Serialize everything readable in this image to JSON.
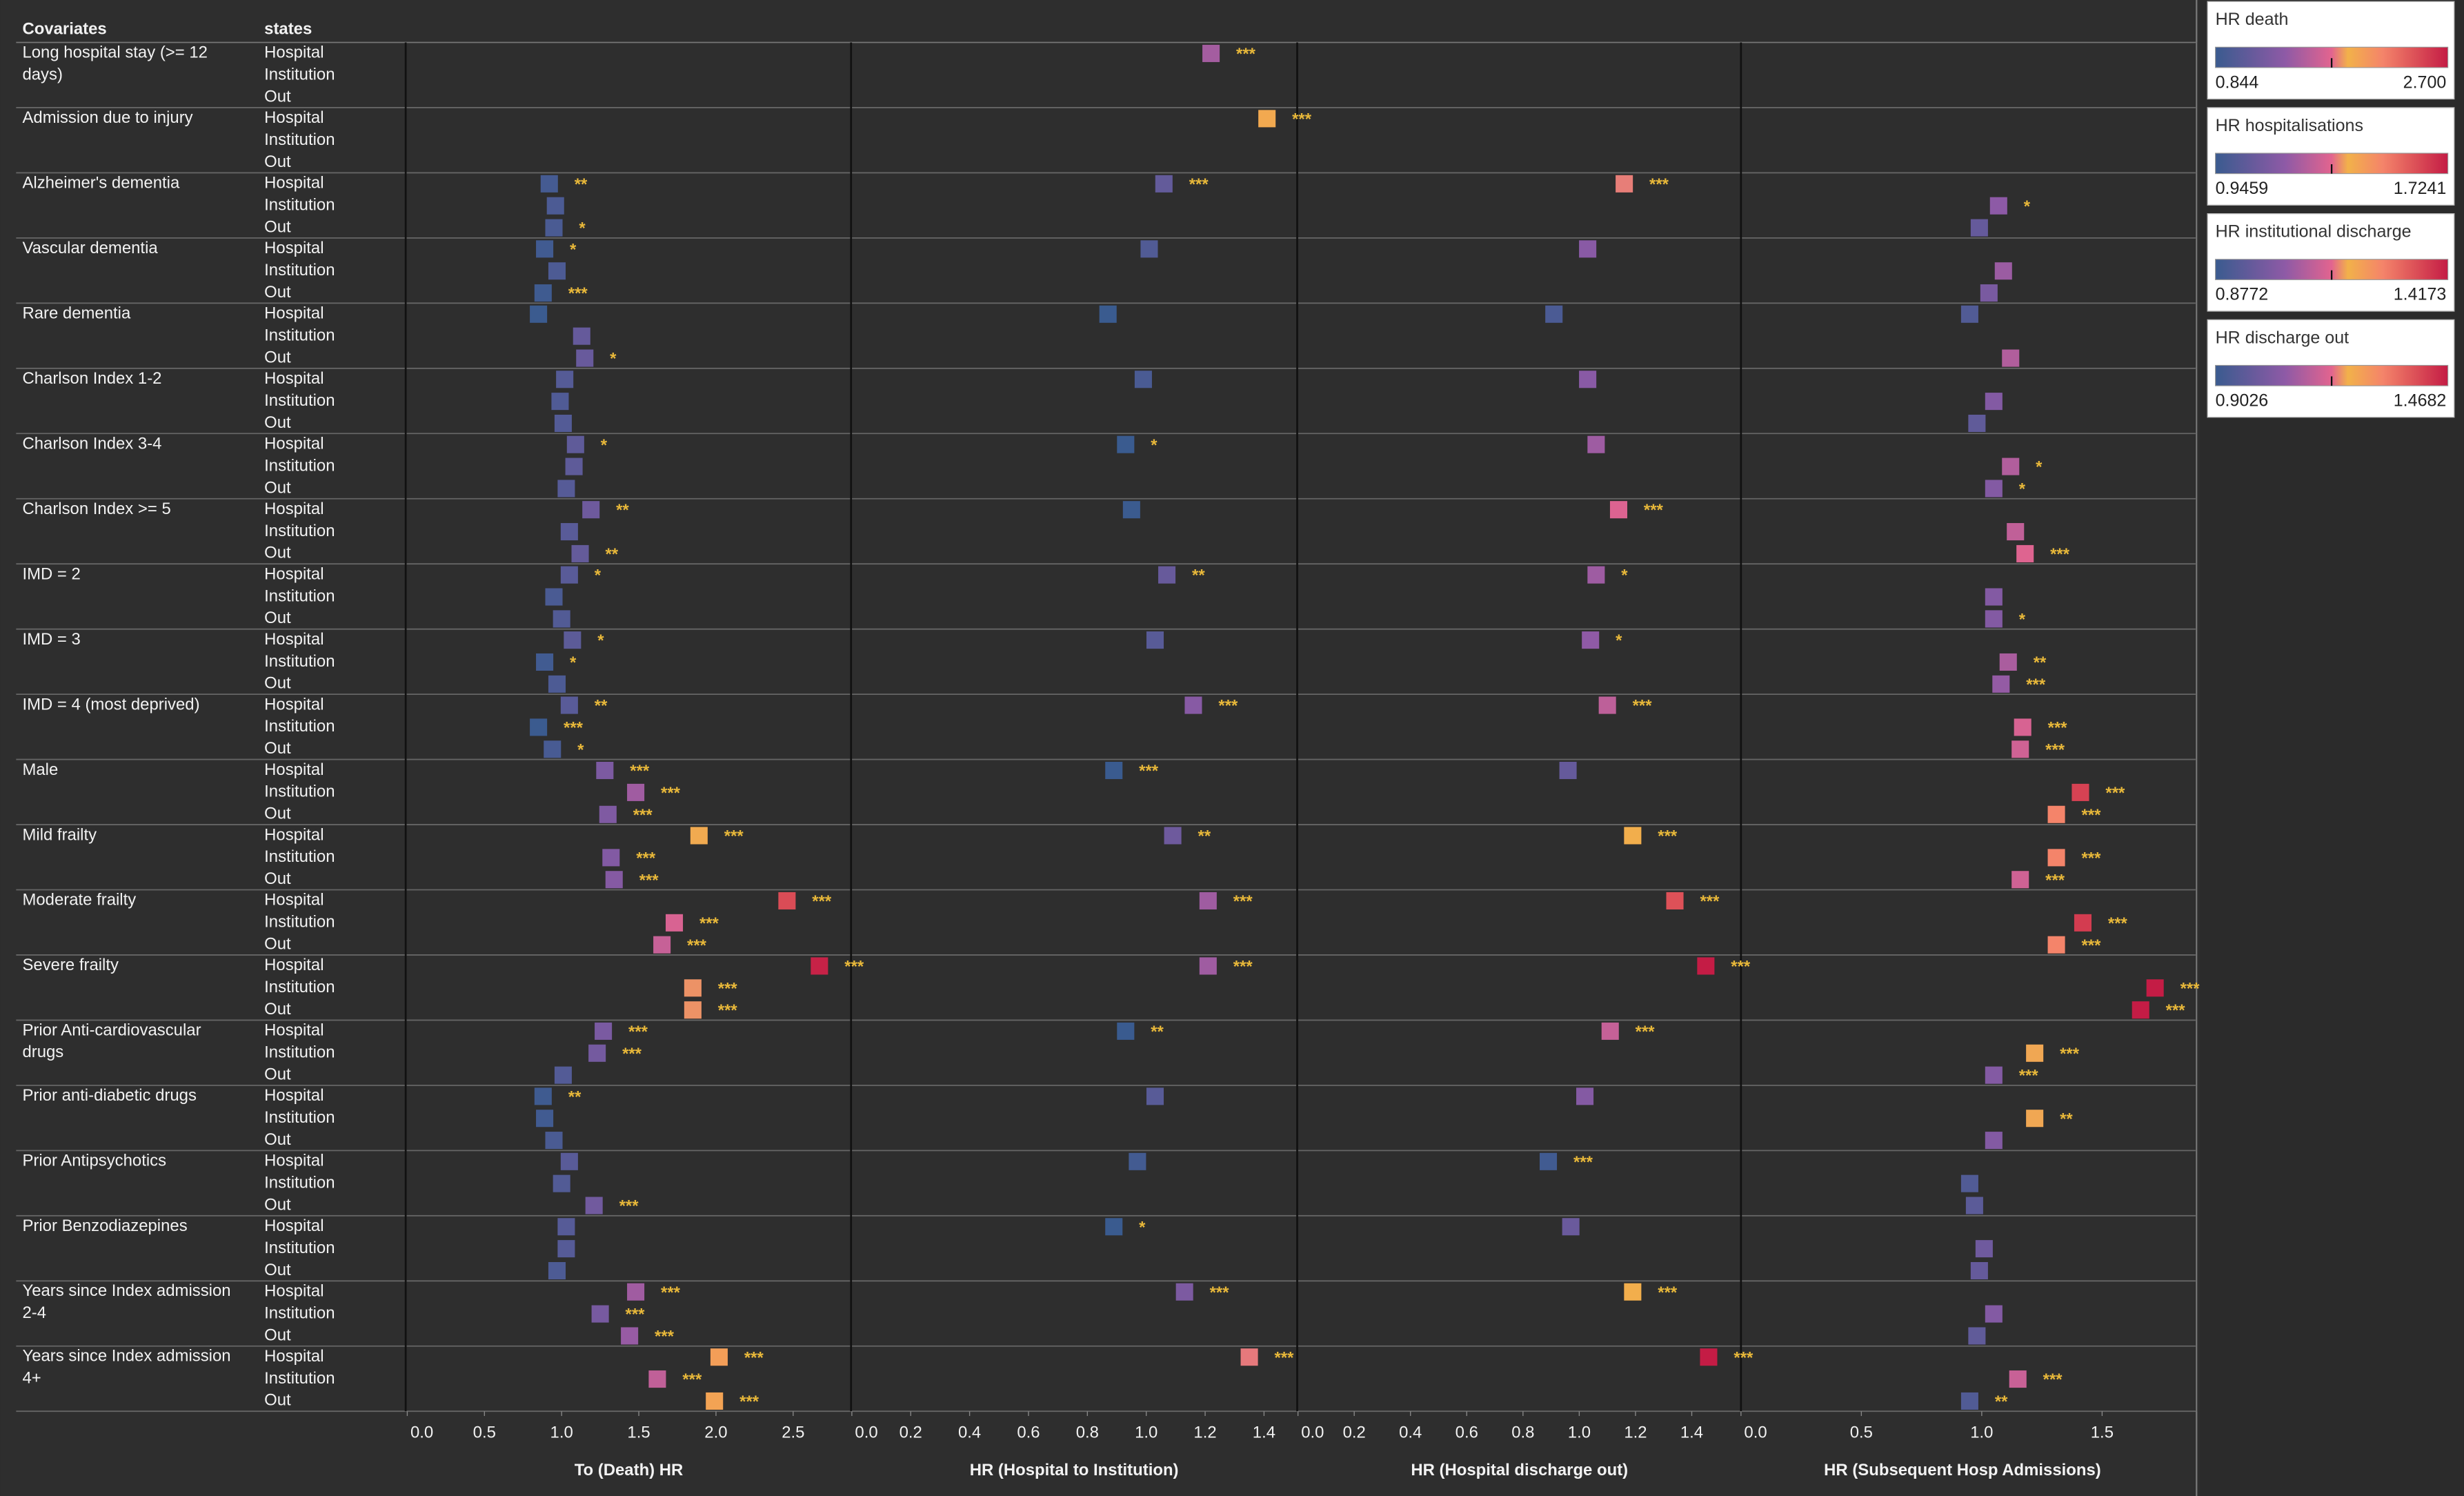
{
  "chart_data": {
    "type": "dot",
    "header": [
      "Covariates",
      "states"
    ],
    "categories": [
      "Long hospital stay (>= 12 days)",
      "Admission due to injury",
      "Alzheimer's dementia",
      "Vascular dementia",
      "Rare dementia",
      "Charlson Index 1-2",
      "Charlson Index 3-4",
      "Charlson Index >= 5",
      "IMD  = 2",
      "IMD  = 3",
      "IMD  = 4  (most deprived)",
      "Male",
      "Mild frailty",
      "Moderate frailty",
      "Severe frailty",
      "Prior  Anti-cardiovascular drugs",
      "Prior  anti-diabetic drugs",
      "Prior Antipsychotics",
      "Prior Benzodiazepines",
      "Years since Index admission 2-4",
      "Years since Index admission 4+"
    ],
    "states": [
      "Hospital",
      "Institution",
      "Out"
    ],
    "star_color": "#e8b83a",
    "colorscale": [
      [
        0,
        "#3a5b8f"
      ],
      [
        0.3,
        "#8e5aa6"
      ],
      [
        0.5,
        "#e2648f"
      ],
      [
        0.57,
        "#f2b14a"
      ],
      [
        0.72,
        "#f4846a"
      ],
      [
        1,
        "#c41c45"
      ]
    ],
    "panels": [
      {
        "title": "To (Death) HR",
        "legend_title": "HR death",
        "legend_range": [
          0.844,
          {
            "value": 2.7,
            "label": "2.700"
          }
        ],
        "xlim": [
          0,
          2.87
        ],
        "xticks": [
          {
            "value": 0,
            "label": "0.0"
          },
          0.5,
          {
            "value": 1,
            "label": "1.0"
          },
          1.5,
          {
            "value": 2,
            "label": "2.0"
          },
          2.5
        ],
        "values": [
          [
            null,
            null,
            0.92,
            0.89,
            0.85,
            1.02,
            1.09,
            1.19,
            1.05,
            1.07,
            1.05,
            1.28,
            1.89,
            2.46,
            2.67,
            1.27,
            0.88,
            1.05,
            1.03,
            1.48,
            2.02
          ],
          [
            null,
            null,
            0.96,
            0.97,
            1.13,
            0.99,
            1.08,
            1.05,
            0.95,
            0.89,
            0.85,
            1.48,
            1.32,
            1.73,
            1.85,
            1.23,
            0.89,
            1.0,
            1.03,
            1.25,
            1.62
          ],
          [
            null,
            null,
            0.95,
            0.88,
            1.15,
            1.01,
            1.03,
            1.12,
            1.0,
            0.97,
            0.94,
            1.3,
            1.34,
            1.65,
            1.85,
            1.01,
            0.95,
            1.21,
            0.97,
            1.44,
            1.99
          ]
        ],
        "stars": [
          [
            null,
            null,
            "**",
            "*",
            null,
            null,
            "*",
            "**",
            "*",
            "*",
            "**",
            "***",
            "***",
            "***",
            "***",
            "***",
            "**",
            null,
            null,
            "***",
            "***"
          ],
          [
            null,
            null,
            null,
            null,
            null,
            null,
            null,
            null,
            null,
            "*",
            "***",
            "***",
            "***",
            "***",
            "***",
            "***",
            null,
            null,
            null,
            "***",
            "***"
          ],
          [
            null,
            null,
            "*",
            "***",
            "*",
            null,
            null,
            "**",
            null,
            null,
            "*",
            "***",
            "***",
            "***",
            "***",
            null,
            null,
            "***",
            null,
            "***",
            "***"
          ]
        ]
      },
      {
        "title": "HR  (Hospital to Institution)",
        "legend_title": "HR hospitalisations",
        "legend_range": [
          0.9459,
          1.7241
        ],
        "xlim": [
          0,
          1.51
        ],
        "xticks": [
          {
            "value": 0,
            "label": "0.0"
          },
          0.2,
          0.4,
          0.6,
          0.8,
          {
            "value": 1,
            "label": "1.0"
          },
          1.2,
          1.4
        ],
        "values": [
          [
            1.22,
            1.41,
            1.06,
            1.01,
            0.87,
            0.99,
            0.93,
            0.95,
            1.07,
            1.03,
            1.16,
            0.89,
            1.09,
            1.21,
            1.21,
            0.93,
            1.03,
            0.97,
            0.89,
            1.13,
            1.35
          ],
          [
            null,
            null,
            null,
            null,
            null,
            null,
            null,
            null,
            null,
            null,
            null,
            null,
            null,
            null,
            null,
            null,
            null,
            null,
            null,
            null,
            null
          ],
          [
            null,
            null,
            null,
            null,
            null,
            null,
            null,
            null,
            null,
            null,
            null,
            null,
            null,
            null,
            null,
            null,
            null,
            null,
            null,
            null,
            null
          ]
        ],
        "stars": [
          [
            "***",
            "***",
            "***",
            null,
            null,
            null,
            "*",
            null,
            "**",
            null,
            "***",
            "***",
            "**",
            "***",
            "***",
            "**",
            null,
            null,
            "*",
            "***",
            "***"
          ],
          [
            null,
            null,
            null,
            null,
            null,
            null,
            null,
            null,
            null,
            null,
            null,
            null,
            null,
            null,
            null,
            null,
            null,
            null,
            null,
            null,
            null
          ],
          [
            null,
            null,
            null,
            null,
            null,
            null,
            null,
            null,
            null,
            null,
            null,
            null,
            null,
            null,
            null,
            null,
            null,
            null,
            null,
            null,
            null
          ]
        ]
      },
      {
        "title": "HR (Hospital discharge out)",
        "legend_title": "HR institutional discharge",
        "legend_range": [
          0.8772,
          1.4173
        ],
        "xlim": [
          0,
          1.575
        ],
        "xticks": [
          {
            "value": 0,
            "label": "0.0"
          },
          0.2,
          0.4,
          0.6,
          0.8,
          {
            "value": 1,
            "label": "1.0"
          },
          1.2,
          1.4
        ],
        "values": [
          [
            null,
            null,
            1.16,
            1.03,
            0.91,
            1.03,
            1.06,
            1.14,
            1.06,
            1.04,
            1.1,
            0.96,
            1.19,
            1.34,
            1.45,
            1.11,
            1.02,
            0.89,
            0.97,
            1.19,
            1.46
          ],
          [
            null,
            null,
            null,
            null,
            null,
            null,
            null,
            null,
            null,
            null,
            null,
            null,
            null,
            null,
            null,
            null,
            null,
            null,
            null,
            null,
            null
          ],
          [
            null,
            null,
            null,
            null,
            null,
            null,
            null,
            null,
            null,
            null,
            null,
            null,
            null,
            null,
            null,
            null,
            null,
            null,
            null,
            null,
            null
          ]
        ],
        "stars": [
          [
            null,
            null,
            "***",
            null,
            null,
            null,
            null,
            "***",
            "*",
            "*",
            "***",
            null,
            "***",
            "***",
            "***",
            "***",
            null,
            "***",
            null,
            "***",
            "***"
          ],
          [
            null,
            null,
            null,
            null,
            null,
            null,
            null,
            null,
            null,
            null,
            null,
            null,
            null,
            null,
            null,
            null,
            null,
            null,
            null,
            null,
            null
          ],
          [
            null,
            null,
            null,
            null,
            null,
            null,
            null,
            null,
            null,
            null,
            null,
            null,
            null,
            null,
            null,
            null,
            null,
            null,
            null,
            null,
            null
          ]
        ]
      },
      {
        "title": "HR (Subsequent Hosp Admissions)",
        "legend_title": "HR discharge out",
        "legend_range": [
          0.9026,
          1.4682
        ],
        "xlim": [
          0,
          1.84
        ],
        "xticks": [
          {
            "value": 0,
            "label": "0.0"
          },
          0.5,
          {
            "value": 1,
            "label": "1.0"
          },
          1.5
        ],
        "values": [
          [
            null,
            null,
            null,
            null,
            0.95,
            null,
            null,
            null,
            null,
            null,
            null,
            null,
            null,
            null,
            null,
            null,
            null,
            null,
            null,
            null,
            null
          ],
          [
            null,
            null,
            1.07,
            1.09,
            null,
            1.05,
            1.12,
            1.14,
            1.05,
            1.11,
            1.17,
            1.41,
            1.31,
            1.42,
            1.72,
            1.22,
            1.22,
            0.95,
            1.01,
            1.05,
            1.15
          ],
          [
            null,
            null,
            0.99,
            1.03,
            1.12,
            0.98,
            1.05,
            1.18,
            1.05,
            1.08,
            1.16,
            1.31,
            1.16,
            1.31,
            1.66,
            1.05,
            1.05,
            0.97,
            0.99,
            0.98,
            0.95
          ]
        ],
        "stars": [
          [
            null,
            null,
            null,
            null,
            null,
            null,
            null,
            null,
            null,
            null,
            null,
            null,
            null,
            null,
            null,
            null,
            null,
            null,
            null,
            null,
            null
          ],
          [
            null,
            null,
            "*",
            null,
            null,
            null,
            "*",
            null,
            null,
            "**",
            "***",
            "***",
            "***",
            "***",
            "***",
            "***",
            "**",
            null,
            null,
            null,
            "***"
          ],
          [
            null,
            null,
            null,
            null,
            null,
            null,
            "*",
            "***",
            "*",
            "***",
            "***",
            "***",
            "***",
            "***",
            "***",
            "***",
            null,
            null,
            null,
            null,
            "**"
          ]
        ]
      }
    ]
  }
}
